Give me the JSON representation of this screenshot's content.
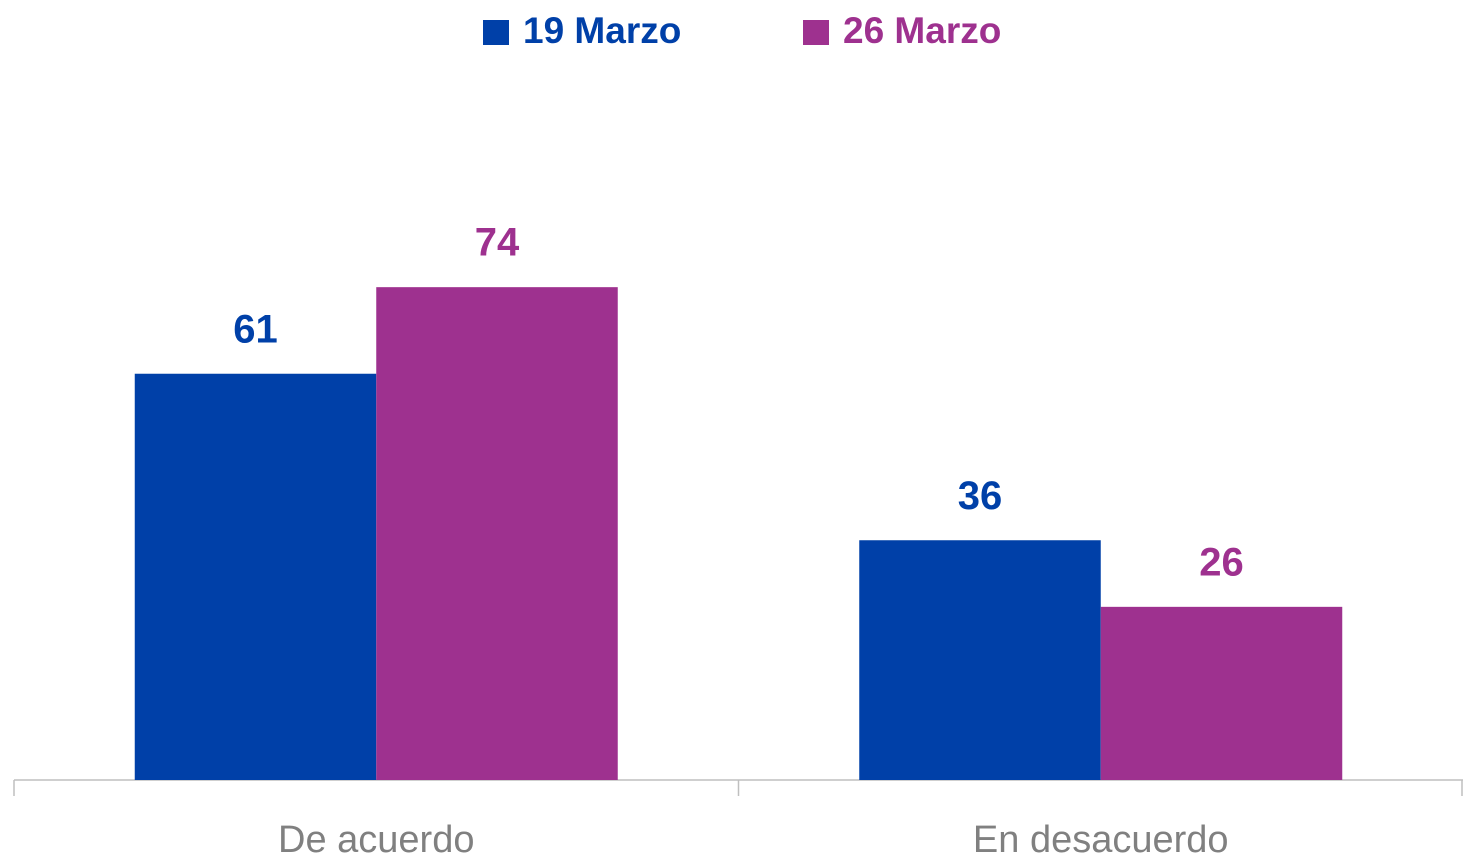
{
  "chart_data": {
    "type": "bar",
    "categories": [
      "De acuerdo",
      "En desacuerdo"
    ],
    "series": [
      {
        "name": "19 Marzo",
        "color": "#0040a8",
        "values": [
          61,
          36
        ]
      },
      {
        "name": "26 Marzo",
        "color": "#9e318f",
        "values": [
          74,
          26
        ]
      }
    ],
    "ylim": [
      0,
      100
    ],
    "legend": "top"
  }
}
